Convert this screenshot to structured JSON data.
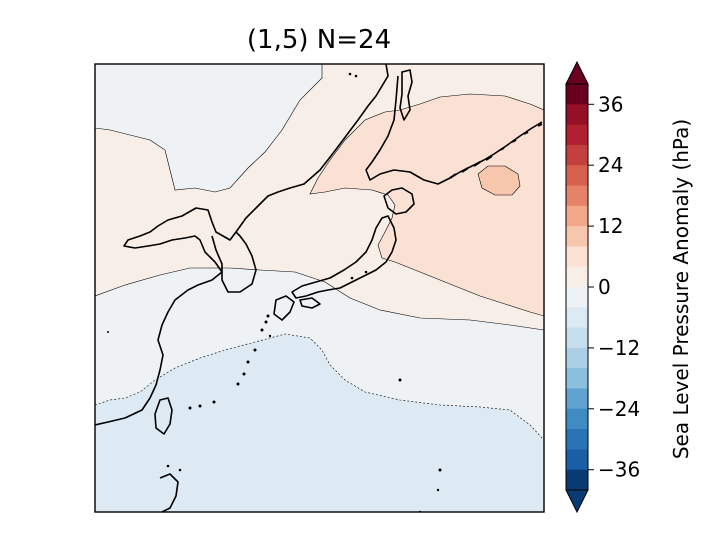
{
  "title": "(1,5) N=24",
  "colorbar": {
    "label": "Sea Level Pressure Anomaly (hPa)",
    "ticks": [
      "36",
      "24",
      "12",
      "0",
      "−12",
      "−24",
      "−36"
    ],
    "min": -40,
    "max": 40,
    "step": 4,
    "colors": [
      "#083b74",
      "#1a5ea6",
      "#2a73b7",
      "#3f8bc3",
      "#5fa1cf",
      "#8abfdd",
      "#abd0e6",
      "#c7deed",
      "#dde9f3",
      "#eef2f5",
      "#f8eee8",
      "#fbe1d4",
      "#f7c7ad",
      "#f2a888",
      "#e58268",
      "#d6604d",
      "#c4403e",
      "#b02030",
      "#950f27",
      "#6a0020"
    ]
  },
  "map": {
    "region": "East Asia / Japan",
    "contours": [
      {
        "level": -4,
        "line": "dashed"
      },
      {
        "level": 0,
        "line": "solid"
      },
      {
        "level": 4,
        "line": "solid"
      }
    ]
  }
}
